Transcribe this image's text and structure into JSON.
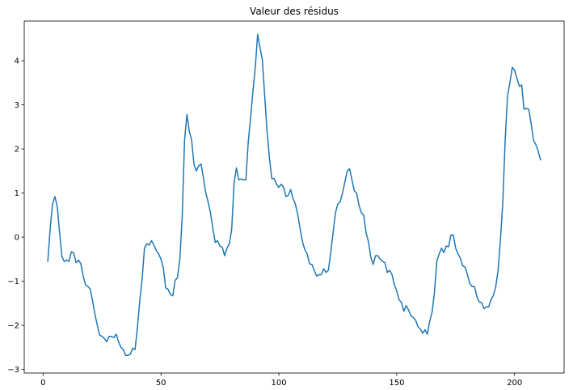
{
  "chart_data": {
    "type": "line",
    "title": "Valeur des résidus",
    "xlabel": "",
    "ylabel": "",
    "xlim": [
      -8,
      221
    ],
    "ylim": [
      -3.08,
      4.9
    ],
    "xticks": [
      0,
      50,
      100,
      150,
      200
    ],
    "yticks": [
      -3,
      -2,
      -1,
      0,
      1,
      2,
      3,
      4
    ],
    "grid": false,
    "legend": "none",
    "color": "#1f77b4",
    "series": [
      {
        "x_start": 2,
        "values": [
          -0.55,
          0.2,
          0.75,
          0.92,
          0.7,
          0.1,
          -0.45,
          -0.55,
          -0.52,
          -0.55,
          -0.33,
          -0.36,
          -0.58,
          -0.52,
          -0.6,
          -0.88,
          -1.08,
          -1.12,
          -1.18,
          -1.45,
          -1.75,
          -2.0,
          -2.22,
          -2.25,
          -2.3,
          -2.37,
          -2.25,
          -2.25,
          -2.28,
          -2.2,
          -2.37,
          -2.5,
          -2.55,
          -2.68,
          -2.68,
          -2.65,
          -2.52,
          -2.55,
          -2.05,
          -1.45,
          -0.95,
          -0.25,
          -0.15,
          -0.18,
          -0.08,
          -0.18,
          -0.3,
          -0.38,
          -0.5,
          -0.7,
          -1.15,
          -1.18,
          -1.3,
          -1.33,
          -0.98,
          -0.92,
          -0.5,
          0.45,
          2.2,
          2.78,
          2.4,
          2.2,
          1.65,
          1.5,
          1.62,
          1.66,
          1.35,
          1.0,
          0.8,
          0.55,
          0.2,
          -0.12,
          -0.08,
          -0.2,
          -0.23,
          -0.42,
          -0.25,
          -0.15,
          0.18,
          1.22,
          1.57,
          1.3,
          1.32,
          1.3,
          1.3,
          2.15,
          2.7,
          3.3,
          3.85,
          4.6,
          4.3,
          4.02,
          3.2,
          2.4,
          1.8,
          1.33,
          1.33,
          1.2,
          1.13,
          1.2,
          1.13,
          0.92,
          0.95,
          1.08,
          0.88,
          0.75,
          0.52,
          0.2,
          -0.1,
          -0.28,
          -0.38,
          -0.6,
          -0.62,
          -0.75,
          -0.88,
          -0.85,
          -0.85,
          -0.72,
          -0.8,
          -0.75,
          -0.35,
          0.1,
          0.55,
          0.75,
          0.8,
          1.0,
          1.25,
          1.5,
          1.55,
          1.3,
          1.05,
          1.0,
          0.72,
          0.55,
          0.5,
          0.1,
          -0.1,
          -0.45,
          -0.62,
          -0.42,
          -0.42,
          -0.5,
          -0.55,
          -0.58,
          -0.8,
          -0.75,
          -0.85,
          -1.08,
          -1.22,
          -1.42,
          -1.48,
          -1.68,
          -1.55,
          -1.65,
          -1.78,
          -1.82,
          -1.88,
          -2.03,
          -2.08,
          -2.18,
          -2.1,
          -2.2,
          -1.9,
          -1.7,
          -1.25,
          -0.55,
          -0.38,
          -0.25,
          -0.35,
          -0.2,
          -0.22,
          0.05,
          0.05,
          -0.25,
          -0.38,
          -0.48,
          -0.65,
          -0.68,
          -0.85,
          -1.05,
          -1.12,
          -1.12,
          -1.35,
          -1.47,
          -1.48,
          -1.62,
          -1.58,
          -1.58,
          -1.42,
          -1.32,
          -1.12,
          -0.75,
          -0.05,
          0.8,
          2.2,
          3.2,
          3.5,
          3.85,
          3.78,
          3.6,
          3.42,
          3.45,
          2.9,
          2.92,
          2.9,
          2.58,
          2.2,
          2.1,
          1.95,
          1.75
        ]
      }
    ]
  }
}
